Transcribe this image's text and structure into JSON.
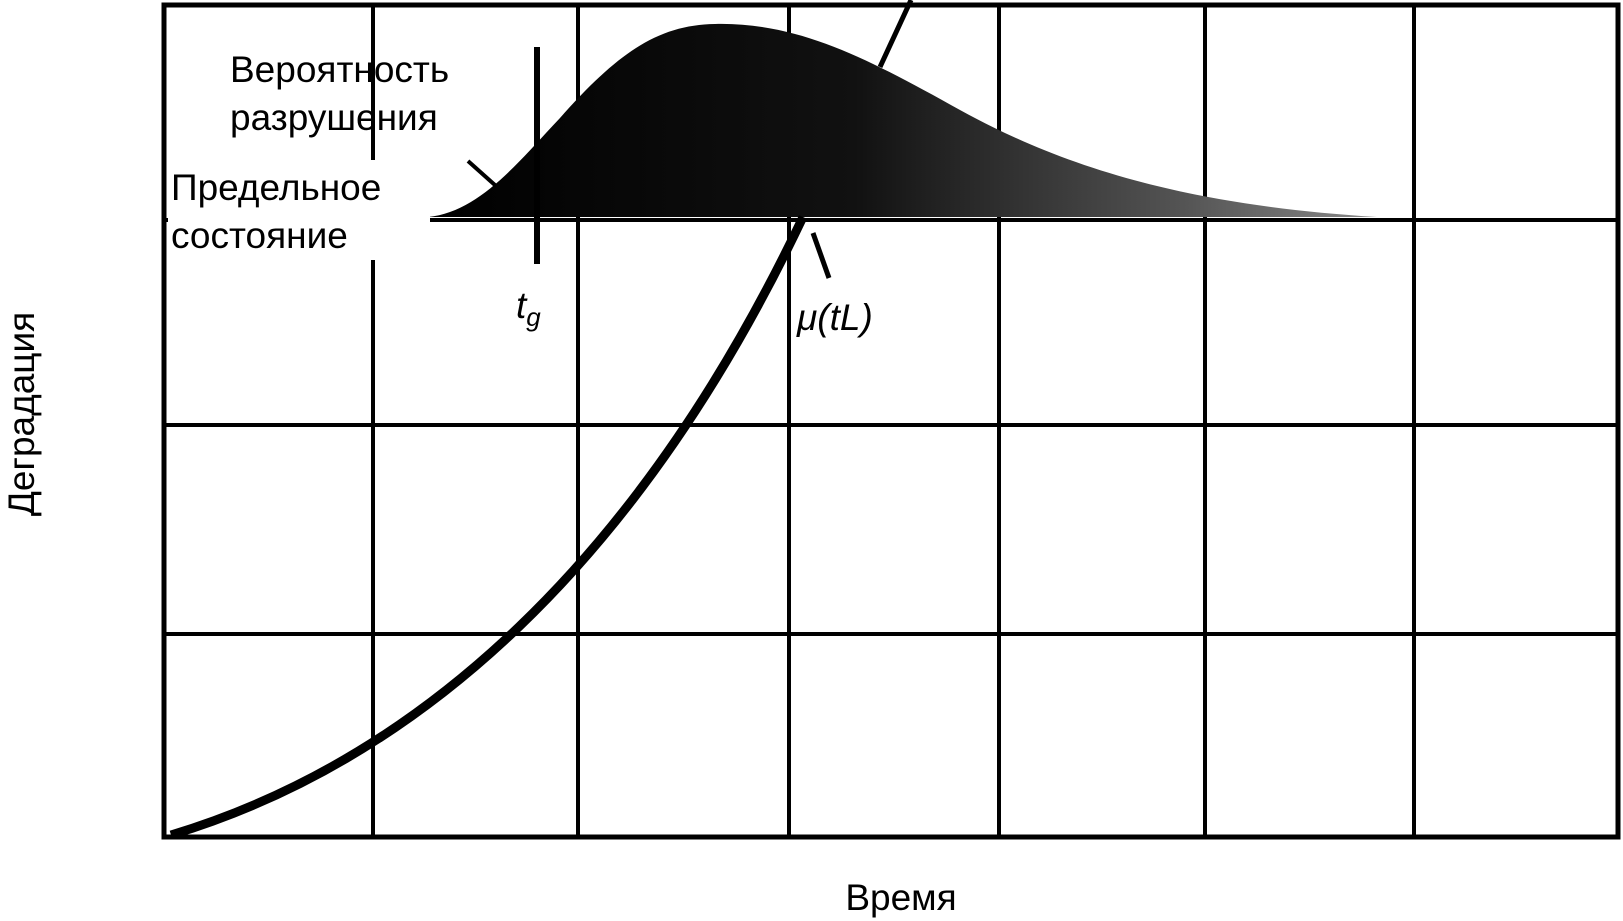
{
  "labels": {
    "failure_probability": [
      "Вероятность",
      "разрушения"
    ],
    "limit_state": [
      "Предельное",
      "состояние"
    ],
    "t_g": {
      "main": "t",
      "sub": "g"
    },
    "mu": "μ(tL)",
    "y_axis": "Деградация",
    "x_axis": "Время"
  }
}
